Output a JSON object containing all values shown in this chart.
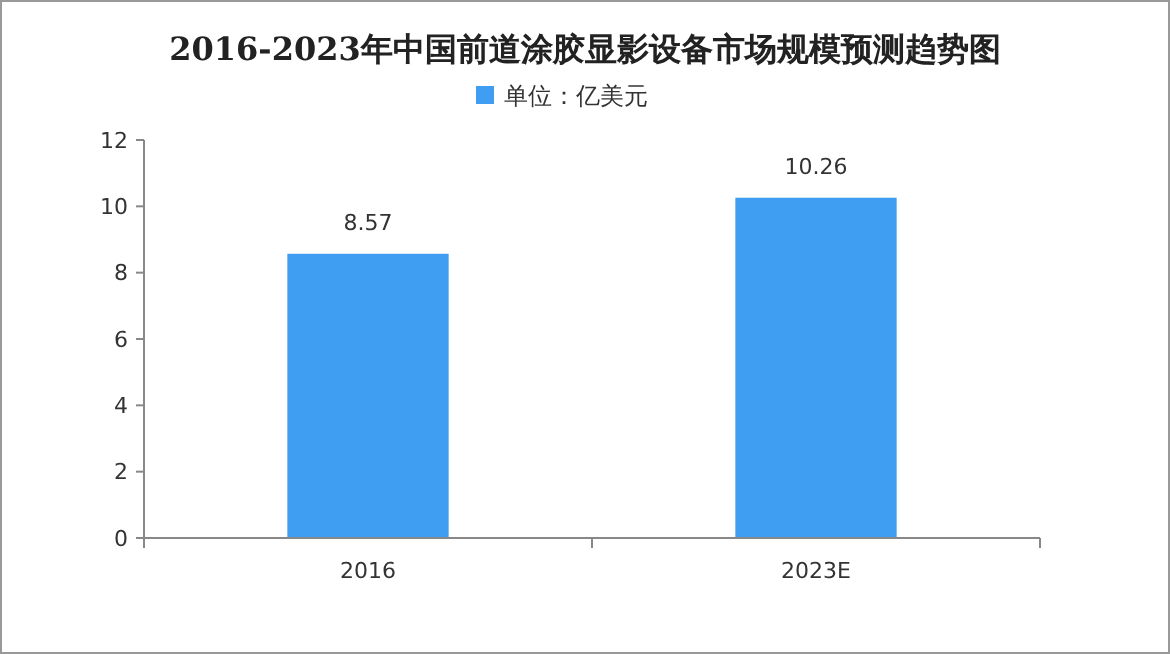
{
  "chart_data": {
    "type": "bar",
    "title": "2016-2023年中国前道涂胶显影设备市场规模预测趋势图",
    "categories": [
      "2016",
      "2023E"
    ],
    "series": [
      {
        "name": "单位：亿美元",
        "color": "#3f9df2",
        "values": [
          8.57,
          10.26
        ]
      }
    ],
    "ylim": [
      0,
      12
    ],
    "yticks": [
      0,
      2,
      4,
      6,
      8,
      10,
      12
    ],
    "grid": false,
    "legend": "top",
    "data_labels": true
  }
}
